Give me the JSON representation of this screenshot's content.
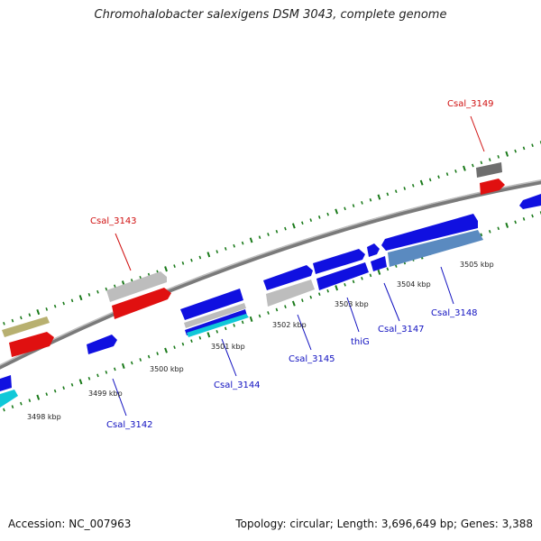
{
  "title": "Chromohalobacter salexigens DSM 3043, complete genome",
  "accession_text": "Accession: NC_007963",
  "summary_text": "Topology: circular; Length: 3,696,649 bp; Genes: 3,388",
  "ticks": [
    "3498 kbp",
    "3499 kbp",
    "3500 kbp",
    "3501 kbp",
    "3502 kbp",
    "3503 kbp",
    "3504 kbp",
    "3505 kbp"
  ],
  "gene_labels": [
    "Csal_3149",
    "Csal_3143",
    "Csal_3142",
    "Csal_3144",
    "Csal_3145",
    "thiG",
    "Csal_3147",
    "Csal_3148"
  ],
  "colors": {
    "blue": "#1010e0",
    "red": "#e01010",
    "grey": "#bdbdbd",
    "dark_grey": "#6e6e6e",
    "olive": "#b8b070",
    "cyan": "#10c8d8",
    "steel": "#5a8ac0",
    "axis": "#808080",
    "dots": "#1a7a1a",
    "label_red": "#d01010",
    "label_blue": "#1010c0"
  }
}
